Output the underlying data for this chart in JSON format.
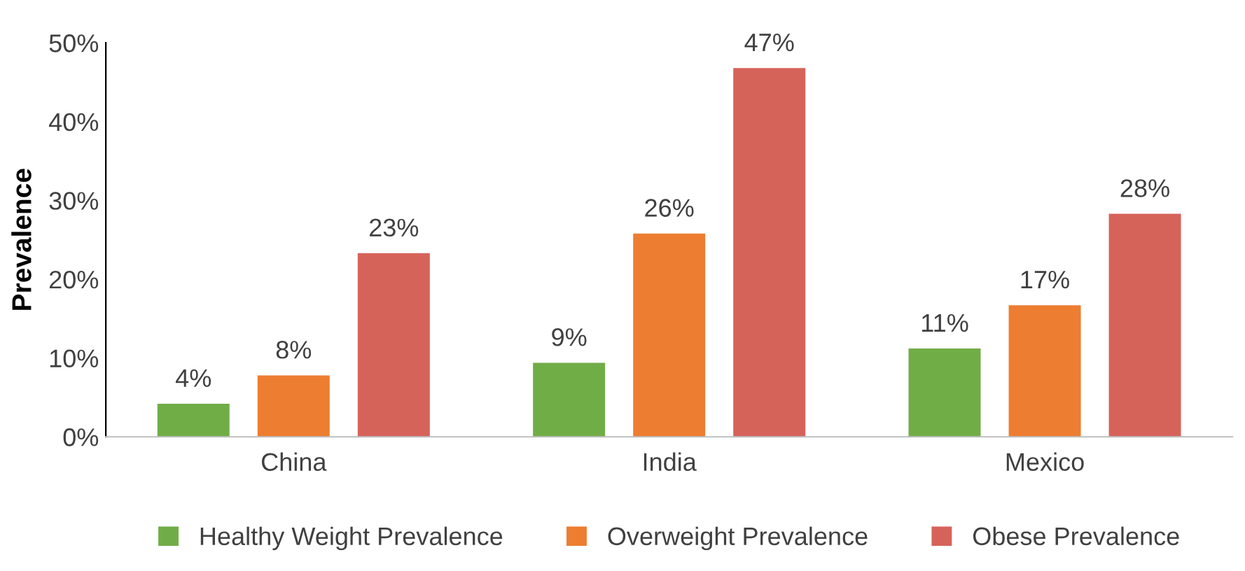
{
  "chart_data": {
    "type": "bar",
    "ylabel": "Prevalence",
    "categories": [
      "China",
      "India",
      "Mexico"
    ],
    "series": [
      {
        "name": "Healthy Weight Prevalence",
        "color": "#70ad47",
        "values": [
          4.2,
          9.4,
          11.2
        ],
        "value_labels": [
          "4%",
          "9%",
          "11%"
        ]
      },
      {
        "name": "Overweight Prevalence",
        "color": "#ed7d31",
        "values": [
          7.8,
          25.8,
          16.7
        ],
        "value_labels": [
          "8%",
          "26%",
          "17%"
        ]
      },
      {
        "name": "Obese Prevalence",
        "color": "#d6635a",
        "values": [
          23.3,
          46.8,
          28.3
        ],
        "value_labels": [
          "23%",
          "47%",
          "28%"
        ]
      }
    ],
    "ylim": [
      0,
      50
    ],
    "yticks": [
      {
        "value": 0,
        "label": "0%"
      },
      {
        "value": 10,
        "label": "10%"
      },
      {
        "value": 20,
        "label": "20%"
      },
      {
        "value": 30,
        "label": "30%"
      },
      {
        "value": 40,
        "label": "40%"
      },
      {
        "value": 50,
        "label": "50%"
      }
    ],
    "grid": false,
    "legend": "bottom"
  }
}
